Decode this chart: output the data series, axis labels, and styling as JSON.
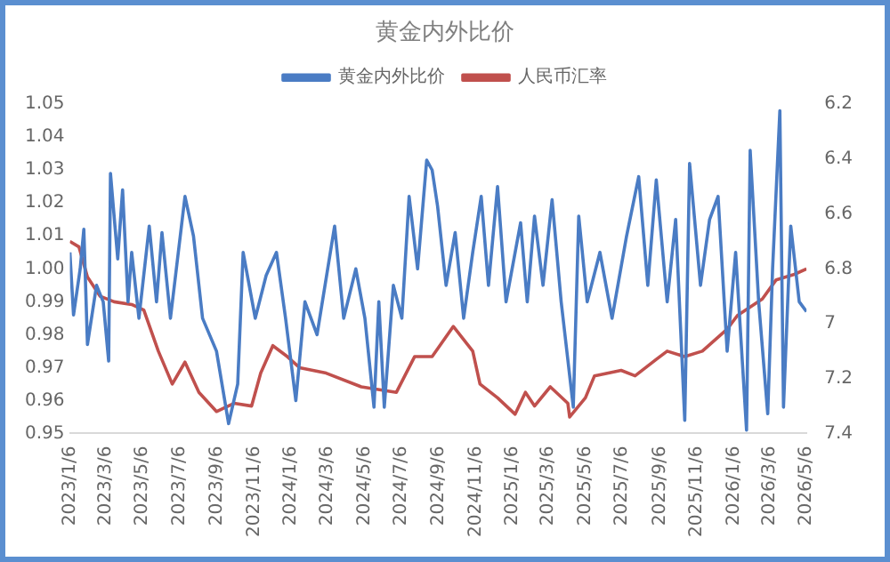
{
  "chart_data": {
    "type": "line",
    "title": "黄金内外比价",
    "legend": "top",
    "grid": false,
    "marker": "none",
    "line_style": "solid",
    "xlim": [
      "2023-01-06",
      "2026-05-06"
    ],
    "xticks": [
      {
        "value": "2023-01-06",
        "label": "2023/1/6"
      },
      {
        "value": "2023-03-06",
        "label": "2023/3/6"
      },
      {
        "value": "2023-05-06",
        "label": "2023/5/6"
      },
      {
        "value": "2023-07-06",
        "label": "2023/7/6"
      },
      {
        "value": "2023-09-06",
        "label": "2023/9/6"
      },
      {
        "value": "2023-11-06",
        "label": "2023/11/6"
      },
      {
        "value": "2024-01-06",
        "label": "2024/1/6"
      },
      {
        "value": "2024-03-06",
        "label": "2024/3/6"
      },
      {
        "value": "2024-05-06",
        "label": "2024/5/6"
      },
      {
        "value": "2024-07-06",
        "label": "2024/7/6"
      },
      {
        "value": "2024-09-06",
        "label": "2024/9/6"
      },
      {
        "value": "2024-11-06",
        "label": "2024/11/6"
      },
      {
        "value": "2025-01-06",
        "label": "2025/1/6"
      },
      {
        "value": "2025-03-06",
        "label": "2025/3/6"
      },
      {
        "value": "2025-05-06",
        "label": "2025/5/6"
      },
      {
        "value": "2025-07-06",
        "label": "2025/7/6"
      },
      {
        "value": "2025-09-06",
        "label": "2025/9/6"
      },
      {
        "value": "2025-11-06",
        "label": "2025/11/6"
      },
      {
        "value": "2026-01-06",
        "label": "2026/1/6"
      },
      {
        "value": "2026-03-06",
        "label": "2026/3/6"
      },
      {
        "value": "2026-05-06",
        "label": "2026/5/6"
      }
    ],
    "ylim": [
      0.95,
      1.05
    ],
    "yticks": [
      0.95,
      0.96,
      0.97,
      0.98,
      0.99,
      {
        "value": 1.0,
        "label": "1.00"
      },
      1.01,
      1.02,
      1.03,
      1.04,
      1.05
    ],
    "y2lim": [
      7.4,
      6.2
    ],
    "y2ticks": [
      7.4,
      7.2,
      7,
      6.8,
      6.6,
      6.4,
      6.2
    ],
    "series": [
      {
        "name": "黄金内外比价",
        "color": "#4a7cc4",
        "x": [
          "2023-01-06",
          "2023-01-12",
          "2023-01-23",
          "2023-01-29",
          "2023-02-04",
          "2023-02-19",
          "2023-03-02",
          "2023-03-11",
          "2023-03-14",
          "2023-03-26",
          "2023-04-03",
          "2023-04-12",
          "2023-04-18",
          "2023-04-30",
          "2023-05-17",
          "2023-05-29",
          "2023-06-07",
          "2023-06-21",
          "2023-07-15",
          "2023-07-29",
          "2023-08-13",
          "2023-09-05",
          "2023-09-25",
          "2023-10-10",
          "2023-10-19",
          "2023-11-08",
          "2023-11-26",
          "2023-12-13",
          "2023-12-28",
          "2024-01-14",
          "2024-01-29",
          "2024-02-18",
          "2024-03-18",
          "2024-04-02",
          "2024-04-22",
          "2024-05-07",
          "2024-05-22",
          "2024-05-30",
          "2024-06-08",
          "2024-06-23",
          "2024-07-07",
          "2024-07-19",
          "2024-08-02",
          "2024-08-17",
          "2024-08-26",
          "2024-09-04",
          "2024-09-18",
          "2024-10-03",
          "2024-10-17",
          "2024-11-01",
          "2024-11-15",
          "2024-11-27",
          "2024-12-12",
          "2024-12-26",
          "2025-01-19",
          "2025-01-30",
          "2025-02-11",
          "2025-02-25",
          "2025-03-12",
          "2025-03-27",
          "2025-04-16",
          "2025-04-25",
          "2025-05-09",
          "2025-05-30",
          "2025-06-19",
          "2025-07-13",
          "2025-08-02",
          "2025-08-17",
          "2025-08-31",
          "2025-09-18",
          "2025-10-02",
          "2025-10-17",
          "2025-10-25",
          "2025-11-12",
          "2025-11-27",
          "2025-12-11",
          "2025-12-26",
          "2026-01-09",
          "2026-01-27",
          "2026-02-02",
          "2026-02-16",
          "2026-03-03",
          "2026-03-11",
          "2026-03-23",
          "2026-03-29",
          "2026-04-10",
          "2026-04-24",
          "2026-05-06"
        ],
        "values": [
          1.005,
          0.986,
          1.0,
          1.012,
          0.977,
          0.995,
          0.99,
          0.972,
          1.029,
          1.003,
          1.024,
          0.99,
          1.005,
          0.985,
          1.013,
          0.99,
          1.011,
          0.985,
          1.022,
          1.01,
          0.985,
          0.975,
          0.953,
          0.965,
          1.005,
          0.985,
          0.998,
          1.005,
          0.985,
          0.96,
          0.99,
          0.98,
          1.013,
          0.985,
          1.0,
          0.985,
          0.958,
          0.99,
          0.958,
          0.995,
          0.985,
          1.022,
          1.0,
          1.033,
          1.03,
          1.019,
          0.995,
          1.011,
          0.985,
          1.005,
          1.022,
          0.995,
          1.025,
          0.99,
          1.014,
          0.99,
          1.016,
          0.995,
          1.021,
          0.99,
          0.958,
          1.016,
          0.99,
          1.005,
          0.985,
          1.01,
          1.028,
          0.995,
          1.027,
          0.99,
          1.015,
          0.954,
          1.032,
          0.995,
          1.015,
          1.022,
          0.975,
          1.005,
          0.951,
          1.036,
          0.99,
          0.956,
          1.0,
          1.048,
          0.958,
          1.013,
          0.99,
          0.987
        ]
      },
      {
        "name": "人民币汇率",
        "color": "#c0504d",
        "axis": "y2",
        "x": [
          "2023-01-06",
          "2023-01-21",
          "2023-02-04",
          "2023-02-25",
          "2023-03-20",
          "2023-04-18",
          "2023-05-08",
          "2023-06-01",
          "2023-06-24",
          "2023-07-15",
          "2023-08-07",
          "2023-09-05",
          "2023-10-04",
          "2023-11-02",
          "2023-11-17",
          "2023-12-07",
          "2023-12-31",
          "2024-01-20",
          "2024-03-04",
          "2024-05-01",
          "2024-06-28",
          "2024-07-28",
          "2024-08-26",
          "2024-09-30",
          "2024-11-01",
          "2024-11-13",
          "2024-12-12",
          "2025-01-10",
          "2025-01-27",
          "2025-02-11",
          "2025-03-09",
          "2025-04-07",
          "2025-04-10",
          "2025-05-06",
          "2025-05-21",
          "2025-07-04",
          "2025-07-27",
          "2025-08-31",
          "2025-09-18",
          "2025-10-17",
          "2025-11-15",
          "2025-12-26",
          "2026-01-12",
          "2026-02-22",
          "2026-03-17",
          "2026-04-16",
          "2026-05-06"
        ],
        "values": [
          6.7,
          6.72,
          6.83,
          6.9,
          6.92,
          6.93,
          6.95,
          7.1,
          7.22,
          7.14,
          7.25,
          7.32,
          7.29,
          7.3,
          7.18,
          7.08,
          7.12,
          7.16,
          7.18,
          7.23,
          7.25,
          7.12,
          7.12,
          7.01,
          7.1,
          7.22,
          7.27,
          7.33,
          7.25,
          7.3,
          7.23,
          7.29,
          7.34,
          7.27,
          7.19,
          7.17,
          7.19,
          7.13,
          7.1,
          7.12,
          7.1,
          7.02,
          6.97,
          6.91,
          6.84,
          6.82,
          6.8
        ]
      }
    ]
  }
}
